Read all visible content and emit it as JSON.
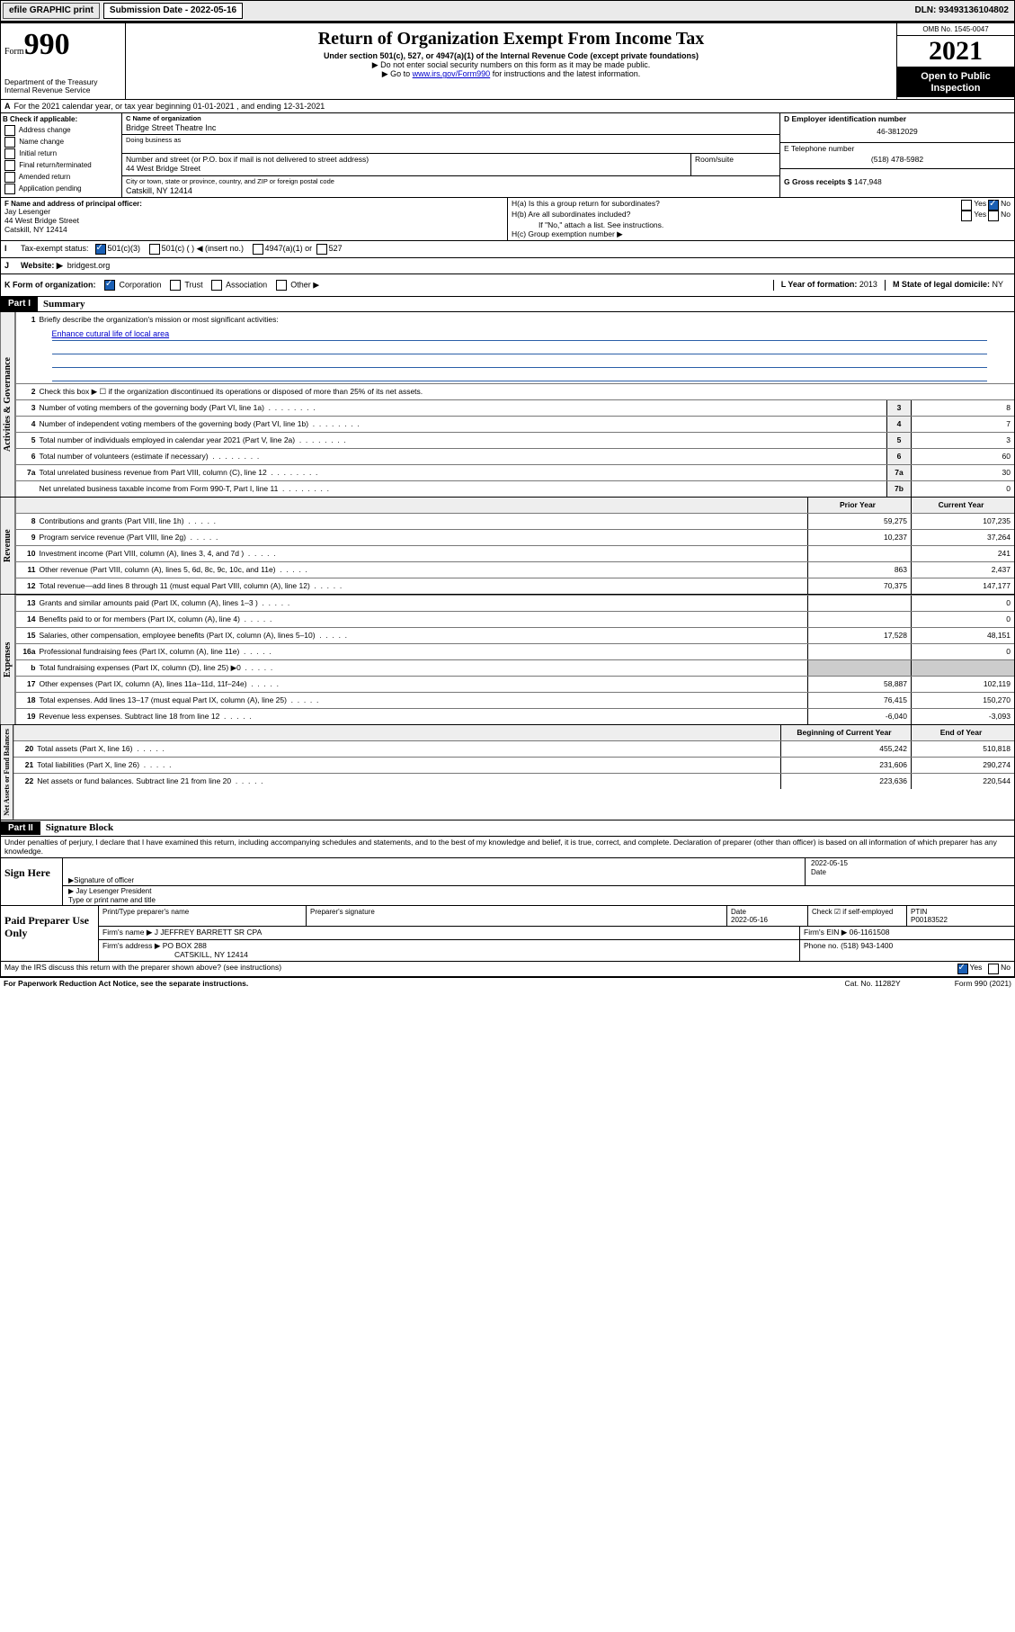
{
  "topbar": {
    "efile": "efile GRAPHIC print",
    "sublabel": "Submission Date - 2022-05-16",
    "dln": "DLN: 93493136104802"
  },
  "header": {
    "form_small": "Form",
    "form_big": "990",
    "dept": "Department of the Treasury",
    "irs": "Internal Revenue Service",
    "title": "Return of Organization Exempt From Income Tax",
    "sub1": "Under section 501(c), 527, or 4947(a)(1) of the Internal Revenue Code (except private foundations)",
    "sub2": "▶ Do not enter social security numbers on this form as it may be made public.",
    "sub3a": "▶ Go to ",
    "sub3link": "www.irs.gov/Form990",
    "sub3b": " for instructions and the latest information.",
    "omb": "OMB No. 1545-0047",
    "year": "2021",
    "open": "Open to Public Inspection"
  },
  "A": {
    "text": "For the 2021 calendar year, or tax year beginning 01-01-2021   , and ending 12-31-2021",
    "label": "A"
  },
  "B": {
    "label": "B Check if applicable:",
    "items": [
      "Address change",
      "Name change",
      "Initial return",
      "Final return/terminated",
      "Amended return",
      "Application pending"
    ]
  },
  "C": {
    "label": "C Name of organization",
    "name": "Bridge Street Theatre Inc",
    "dba_label": "Doing business as",
    "dba": "",
    "addr_label": "Number and street (or P.O. box if mail is not delivered to street address)",
    "room": "Room/suite",
    "addr": "44 West Bridge Street",
    "city_label": "City or town, state or province, country, and ZIP or foreign postal code",
    "city": "Catskill, NY  12414"
  },
  "D": {
    "label": "D Employer identification number",
    "val": "46-3812029"
  },
  "E": {
    "label": "E Telephone number",
    "val": "(518) 478-5982"
  },
  "G": {
    "label": "G Gross receipts $",
    "val": "147,948"
  },
  "F": {
    "label": "F  Name and address of principal officer:",
    "name": "Jay Lesenger",
    "l1": "44 West Bridge Street",
    "l2": "Catskill, NY  12414"
  },
  "H": {
    "a": "H(a)  Is this a group return for subordinates?",
    "b": "H(b)  Are all subordinates included?",
    "bnote": "If \"No,\" attach a list. See instructions.",
    "c": "H(c)  Group exemption number ▶",
    "yes": "Yes",
    "no": "No"
  },
  "I": {
    "label": "Tax-exempt status:",
    "c3": "501(c)(3)",
    "c": "501(c) ( ) ◀ (insert no.)",
    "a4947": "4947(a)(1) or",
    "s527": "527",
    "checked": "c3"
  },
  "J": {
    "label": "Website: ▶",
    "val": "bridgest.org"
  },
  "K": {
    "label": "K Form of organization:",
    "opts": [
      "Corporation",
      "Trust",
      "Association",
      "Other ▶"
    ],
    "checked": 0
  },
  "L": {
    "label": "L Year of formation:",
    "val": "2013"
  },
  "M": {
    "label": "M State of legal domicile:",
    "val": "NY"
  },
  "part1": {
    "hdr": "Part I",
    "title": "Summary",
    "l1": "Briefly describe the organization's mission or most significant activities:",
    "mission": "Enhance cutural life of local area",
    "l2": "Check this box ▶ ☐  if the organization discontinued its operations or disposed of more than 25% of its net assets.",
    "rows_ag": [
      {
        "n": "3",
        "t": "Number of voting members of the governing body (Part VI, line 1a)",
        "c": "3",
        "v": "8"
      },
      {
        "n": "4",
        "t": "Number of independent voting members of the governing body (Part VI, line 1b)",
        "c": "4",
        "v": "7"
      },
      {
        "n": "5",
        "t": "Total number of individuals employed in calendar year 2021 (Part V, line 2a)",
        "c": "5",
        "v": "3"
      },
      {
        "n": "6",
        "t": "Total number of volunteers (estimate if necessary)",
        "c": "6",
        "v": "60"
      },
      {
        "n": "7a",
        "t": "Total unrelated business revenue from Part VIII, column (C), line 12",
        "c": "7a",
        "v": "30"
      },
      {
        "n": "",
        "t": "Net unrelated business taxable income from Form 990-T, Part I, line 11",
        "c": "7b",
        "v": "0"
      }
    ],
    "hdr_prior": "Prior Year",
    "hdr_curr": "Current Year",
    "rows_rev": [
      {
        "n": "8",
        "t": "Contributions and grants (Part VIII, line 1h)",
        "p": "59,275",
        "c": "107,235"
      },
      {
        "n": "9",
        "t": "Program service revenue (Part VIII, line 2g)",
        "p": "10,237",
        "c": "37,264"
      },
      {
        "n": "10",
        "t": "Investment income (Part VIII, column (A), lines 3, 4, and 7d )",
        "p": "",
        "c": "241"
      },
      {
        "n": "11",
        "t": "Other revenue (Part VIII, column (A), lines 5, 6d, 8c, 9c, 10c, and 11e)",
        "p": "863",
        "c": "2,437"
      },
      {
        "n": "12",
        "t": "Total revenue—add lines 8 through 11 (must equal Part VIII, column (A), line 12)",
        "p": "70,375",
        "c": "147,177"
      }
    ],
    "rows_exp": [
      {
        "n": "13",
        "t": "Grants and similar amounts paid (Part IX, column (A), lines 1–3 )",
        "p": "",
        "c": "0"
      },
      {
        "n": "14",
        "t": "Benefits paid to or for members (Part IX, column (A), line 4)",
        "p": "",
        "c": "0"
      },
      {
        "n": "15",
        "t": "Salaries, other compensation, employee benefits (Part IX, column (A), lines 5–10)",
        "p": "17,528",
        "c": "48,151"
      },
      {
        "n": "16a",
        "t": "Professional fundraising fees (Part IX, column (A), line 11e)",
        "p": "",
        "c": "0"
      },
      {
        "n": "b",
        "t": "Total fundraising expenses (Part IX, column (D), line 25) ▶0",
        "p": "sh",
        "c": "sh"
      },
      {
        "n": "17",
        "t": "Other expenses (Part IX, column (A), lines 11a–11d, 11f–24e)",
        "p": "58,887",
        "c": "102,119"
      },
      {
        "n": "18",
        "t": "Total expenses. Add lines 13–17 (must equal Part IX, column (A), line 25)",
        "p": "76,415",
        "c": "150,270"
      },
      {
        "n": "19",
        "t": "Revenue less expenses. Subtract line 18 from line 12",
        "p": "-6,040",
        "c": "-3,093"
      }
    ],
    "hdr_boy": "Beginning of Current Year",
    "hdr_eoy": "End of Year",
    "rows_na": [
      {
        "n": "20",
        "t": "Total assets (Part X, line 16)",
        "p": "455,242",
        "c": "510,818"
      },
      {
        "n": "21",
        "t": "Total liabilities (Part X, line 26)",
        "p": "231,606",
        "c": "290,274"
      },
      {
        "n": "22",
        "t": "Net assets or fund balances. Subtract line 21 from line 20",
        "p": "223,636",
        "c": "220,544"
      }
    ],
    "vtab_ag": "Activities & Governance",
    "vtab_rev": "Revenue",
    "vtab_exp": "Expenses",
    "vtab_na": "Net Assets or Fund Balances"
  },
  "part2": {
    "hdr": "Part II",
    "title": "Signature Block",
    "pen": "Under penalties of perjury, I declare that I have examined this return, including accompanying schedules and statements, and to the best of my knowledge and belief, it is true, correct, and complete. Declaration of preparer (other than officer) is based on all information of which preparer has any knowledge.",
    "sign_here": "Sign Here",
    "sig_officer": "Signature of officer",
    "date": "Date",
    "sig_date": "2022-05-15",
    "name_title": "Jay Lesenger  President",
    "type_name": "Type or print name and title",
    "paid": "Paid Preparer Use Only",
    "prep_name_lab": "Print/Type preparer's name",
    "prep_sig_lab": "Preparer's signature",
    "prep_date_lab": "Date",
    "prep_date": "2022-05-16",
    "check_lab": "Check ☑ if self-employed",
    "ptin_lab": "PTIN",
    "ptin": "P00183522",
    "firm_name_lab": "Firm's name   ▶",
    "firm_name": "J JEFFREY BARRETT SR CPA",
    "firm_ein_lab": "Firm's EIN ▶",
    "firm_ein": "06-1161508",
    "firm_addr_lab": "Firm's address ▶",
    "firm_addr": "PO BOX 288",
    "firm_city": "CATSKILL, NY  12414",
    "phone_lab": "Phone no.",
    "phone": "(518) 943-1400",
    "may_irs": "May the IRS discuss this return with the preparer shown above? (see instructions)",
    "yes": "Yes",
    "no": "No"
  },
  "footer": {
    "pra": "For Paperwork Reduction Act Notice, see the separate instructions.",
    "cat": "Cat. No. 11282Y",
    "form": "Form 990 (2021)"
  }
}
